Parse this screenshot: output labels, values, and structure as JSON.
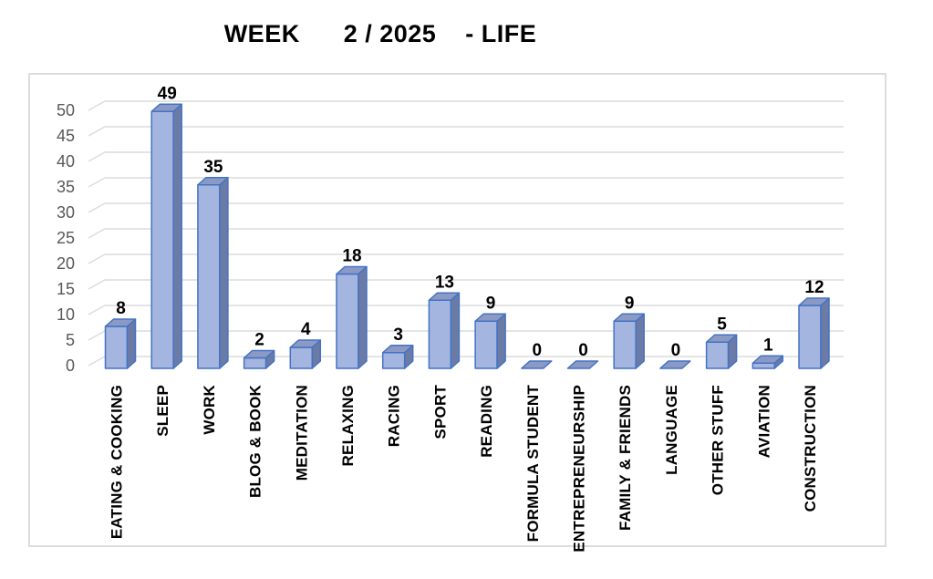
{
  "title": "WEEK      2 / 2025    - LIFE",
  "colors": {
    "bar_front": "#a4b5df",
    "bar_top": "#8b9ac4",
    "bar_side": "#6b7ba6",
    "bar_outline": "#4472c4",
    "gridline": "#dcdcdc",
    "tick_text": "#595959",
    "label_text": "#000000",
    "frame_border": "#dcdcdc",
    "background": "#ffffff"
  },
  "chart_data": {
    "type": "bar",
    "style": "3d-column",
    "title": "WEEK      2 / 2025    - LIFE",
    "categories": [
      "EATING & COOKING",
      "SLEEP",
      "WORK",
      "BLOG & BOOK",
      "MEDITATION",
      "RELAXING",
      "RACING",
      "SPORT",
      "READING",
      "FORMULA STUDENT",
      "ENTREPRENEURSHIP",
      "FAMILY & FRIENDS",
      "LANGUAGE",
      "OTHER STUFF",
      "AVIATION",
      "CONSTRUCTION"
    ],
    "values": [
      8,
      49,
      35,
      2,
      4,
      18,
      3,
      13,
      9,
      0,
      0,
      9,
      0,
      5,
      1,
      12
    ],
    "xlabel": "",
    "ylabel": "",
    "ylim": [
      0,
      50
    ],
    "ytick_step": 5,
    "grid": true,
    "legend": false,
    "data_labels": true,
    "category_label_rotation_deg": -90
  }
}
